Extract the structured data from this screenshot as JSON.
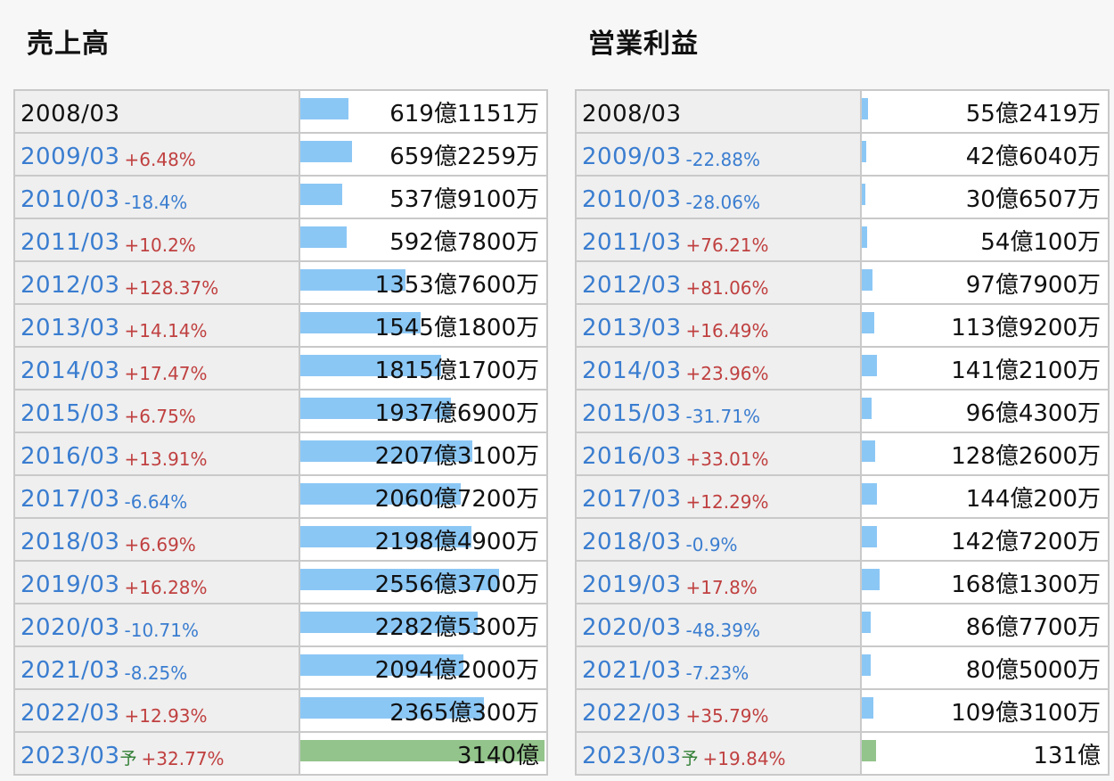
{
  "left": {
    "title": "売上高",
    "rows": [
      {
        "year": "2008/03",
        "change": "",
        "dir": "",
        "forecast": "",
        "amount": "619億1151万",
        "value": 619.1151
      },
      {
        "year": "2009/03",
        "change": "+6.48%",
        "dir": "up",
        "forecast": "",
        "amount": "659億2259万",
        "value": 659.2259
      },
      {
        "year": "2010/03",
        "change": "-18.4%",
        "dir": "down",
        "forecast": "",
        "amount": "537億9100万",
        "value": 537.91
      },
      {
        "year": "2011/03",
        "change": "+10.2%",
        "dir": "up",
        "forecast": "",
        "amount": "592億7800万",
        "value": 592.78
      },
      {
        "year": "2012/03",
        "change": "+128.37%",
        "dir": "up",
        "forecast": "",
        "amount": "1353億7600万",
        "value": 1353.76
      },
      {
        "year": "2013/03",
        "change": "+14.14%",
        "dir": "up",
        "forecast": "",
        "amount": "1545億1800万",
        "value": 1545.18
      },
      {
        "year": "2014/03",
        "change": "+17.47%",
        "dir": "up",
        "forecast": "",
        "amount": "1815億1700万",
        "value": 1815.17
      },
      {
        "year": "2015/03",
        "change": "+6.75%",
        "dir": "up",
        "forecast": "",
        "amount": "1937億6900万",
        "value": 1937.69
      },
      {
        "year": "2016/03",
        "change": "+13.91%",
        "dir": "up",
        "forecast": "",
        "amount": "2207億3100万",
        "value": 2207.31
      },
      {
        "year": "2017/03",
        "change": "-6.64%",
        "dir": "down",
        "forecast": "",
        "amount": "2060億7200万",
        "value": 2060.72
      },
      {
        "year": "2018/03",
        "change": "+6.69%",
        "dir": "up",
        "forecast": "",
        "amount": "2198億4900万",
        "value": 2198.49
      },
      {
        "year": "2019/03",
        "change": "+16.28%",
        "dir": "up",
        "forecast": "",
        "amount": "2556億3700万",
        "value": 2556.37
      },
      {
        "year": "2020/03",
        "change": "-10.71%",
        "dir": "down",
        "forecast": "",
        "amount": "2282億5300万",
        "value": 2282.53
      },
      {
        "year": "2021/03",
        "change": "-8.25%",
        "dir": "down",
        "forecast": "",
        "amount": "2094億2000万",
        "value": 2094.2
      },
      {
        "year": "2022/03",
        "change": "+12.93%",
        "dir": "up",
        "forecast": "",
        "amount": "2365億300万",
        "value": 2365.03
      },
      {
        "year": "2023/03",
        "change": "+32.77%",
        "dir": "up",
        "forecast": "予",
        "amount": "3140億",
        "value": 3140
      }
    ]
  },
  "right": {
    "title": "営業利益",
    "rows": [
      {
        "year": "2008/03",
        "change": "",
        "dir": "",
        "forecast": "",
        "amount": "55億2419万",
        "value": 55.2419
      },
      {
        "year": "2009/03",
        "change": "-22.88%",
        "dir": "down",
        "forecast": "",
        "amount": "42億6040万",
        "value": 42.604
      },
      {
        "year": "2010/03",
        "change": "-28.06%",
        "dir": "down",
        "forecast": "",
        "amount": "30億6507万",
        "value": 30.6507
      },
      {
        "year": "2011/03",
        "change": "+76.21%",
        "dir": "up",
        "forecast": "",
        "amount": "54億100万",
        "value": 54.01
      },
      {
        "year": "2012/03",
        "change": "+81.06%",
        "dir": "up",
        "forecast": "",
        "amount": "97億7900万",
        "value": 97.79
      },
      {
        "year": "2013/03",
        "change": "+16.49%",
        "dir": "up",
        "forecast": "",
        "amount": "113億9200万",
        "value": 113.92
      },
      {
        "year": "2014/03",
        "change": "+23.96%",
        "dir": "up",
        "forecast": "",
        "amount": "141億2100万",
        "value": 141.21
      },
      {
        "year": "2015/03",
        "change": "-31.71%",
        "dir": "down",
        "forecast": "",
        "amount": "96億4300万",
        "value": 96.43
      },
      {
        "year": "2016/03",
        "change": "+33.01%",
        "dir": "up",
        "forecast": "",
        "amount": "128億2600万",
        "value": 128.26
      },
      {
        "year": "2017/03",
        "change": "+12.29%",
        "dir": "up",
        "forecast": "",
        "amount": "144億200万",
        "value": 144.02
      },
      {
        "year": "2018/03",
        "change": "-0.9%",
        "dir": "down",
        "forecast": "",
        "amount": "142億7200万",
        "value": 142.72
      },
      {
        "year": "2019/03",
        "change": "+17.8%",
        "dir": "up",
        "forecast": "",
        "amount": "168億1300万",
        "value": 168.13
      },
      {
        "year": "2020/03",
        "change": "-48.39%",
        "dir": "down",
        "forecast": "",
        "amount": "86億7700万",
        "value": 86.77
      },
      {
        "year": "2021/03",
        "change": "-7.23%",
        "dir": "down",
        "forecast": "",
        "amount": "80億5000万",
        "value": 80.5
      },
      {
        "year": "2022/03",
        "change": "+35.79%",
        "dir": "up",
        "forecast": "",
        "amount": "109億3100万",
        "value": 109.31
      },
      {
        "year": "2023/03",
        "change": "+19.84%",
        "dir": "up",
        "forecast": "予",
        "amount": "131億",
        "value": 131
      }
    ]
  },
  "colors": {
    "bar": "#8bc7f5",
    "forecast_bar": "#93c48b",
    "up": "#c04040",
    "down": "#3a7dd0"
  }
}
